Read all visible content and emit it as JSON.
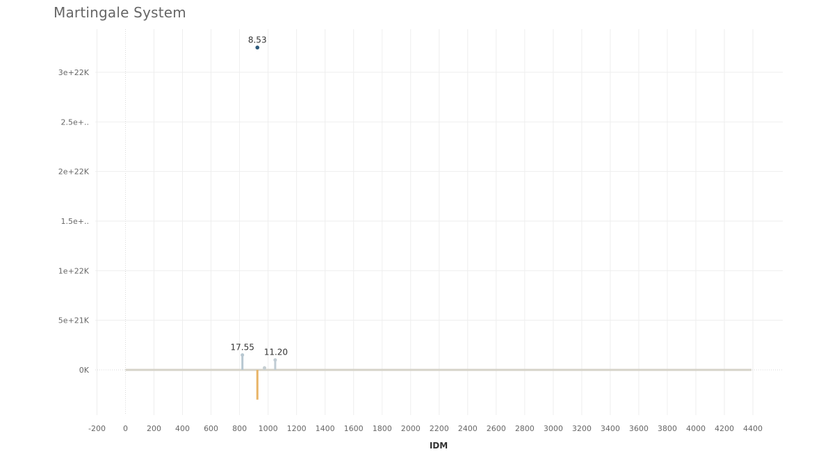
{
  "title": "Martingale System",
  "chart_data": {
    "type": "bar",
    "title": "Martingale System",
    "xlabel": "IDM",
    "ylabel": "",
    "xlim": [
      -200,
      4450
    ],
    "ylim": [
      -5e+21,
      3.3e+22
    ],
    "grid": true,
    "x_ticks": [
      -200,
      0,
      200,
      400,
      600,
      800,
      1000,
      1200,
      1400,
      1600,
      1800,
      2000,
      2200,
      2400,
      2600,
      2800,
      3000,
      3200,
      3400,
      3600,
      3800,
      4000,
      4200,
      4400
    ],
    "x_tick_labels": [
      "-200",
      "0",
      "200",
      "400",
      "600",
      "800",
      "1000",
      "1200",
      "1400",
      "1600",
      "1800",
      "2000",
      "2200",
      "2400",
      "2600",
      "2800",
      "3000",
      "3200",
      "3400",
      "3600",
      "3800",
      "4000",
      "4200",
      "4400"
    ],
    "y_ticks": [
      0,
      5e+21,
      1e+22,
      1.5e+22,
      2e+22,
      2.5e+22,
      3e+22
    ],
    "y_tick_labels": [
      "0K",
      "5e+21K",
      "1e+22K",
      "1.5e+..",
      "2e+22K",
      "2.5e+..",
      "3e+22K"
    ],
    "baseline_range": [
      0,
      4390
    ],
    "points": [
      {
        "x": 820,
        "y": 1.5e+21,
        "label": "17.55",
        "color": "#b7c7d1"
      },
      {
        "x": 925,
        "y": 3.25e+22,
        "label": "8.53",
        "color": "#2f5b7c"
      },
      {
        "x": 925,
        "y": -3e+21,
        "label": "",
        "color": "#e8b467"
      },
      {
        "x": 975,
        "y": 2e+20,
        "label": "",
        "color": "#c6cfd3"
      },
      {
        "x": 1050,
        "y": 1e+21,
        "label": "11.20",
        "color": "#c0ccd4"
      }
    ],
    "colors": {
      "baseline": "#d6d3c8",
      "grid": "#eeeeee",
      "zero_line": "#d9d9d9",
      "bar_top": "#2f5b7c",
      "bar_bottom": "#c9c7b8",
      "negative": "#e8b467"
    }
  }
}
